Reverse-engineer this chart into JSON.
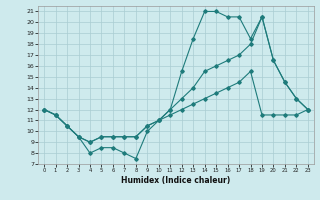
{
  "xlabel": "Humidex (Indice chaleur)",
  "bg_color": "#ceeaed",
  "grid_color": "#aacdd2",
  "line_color": "#1e7b7b",
  "xlim": [
    -0.5,
    23.5
  ],
  "ylim": [
    7,
    21.5
  ],
  "xticks": [
    0,
    1,
    2,
    3,
    4,
    5,
    6,
    7,
    8,
    9,
    10,
    11,
    12,
    13,
    14,
    15,
    16,
    17,
    18,
    19,
    20,
    21,
    22,
    23
  ],
  "yticks": [
    7,
    8,
    9,
    10,
    11,
    12,
    13,
    14,
    15,
    16,
    17,
    18,
    19,
    20,
    21
  ],
  "line1_x": [
    0,
    1,
    2,
    3,
    4,
    5,
    6,
    7,
    8,
    9,
    10,
    11,
    12,
    13,
    14,
    15,
    16,
    17,
    18,
    19,
    20,
    21,
    22,
    23
  ],
  "line1_y": [
    12,
    11.5,
    10.5,
    9.5,
    8.0,
    8.5,
    8.5,
    8.0,
    7.5,
    10.0,
    11.0,
    12.0,
    15.5,
    18.5,
    21.0,
    21.0,
    20.5,
    20.5,
    18.5,
    20.5,
    16.5,
    14.5,
    13.0,
    12.0
  ],
  "line2_x": [
    0,
    1,
    2,
    3,
    4,
    5,
    6,
    7,
    8,
    9,
    10,
    11,
    12,
    13,
    14,
    15,
    16,
    17,
    18,
    19,
    20,
    21,
    22,
    23
  ],
  "line2_y": [
    12,
    11.5,
    10.5,
    9.5,
    9.0,
    9.5,
    9.5,
    9.5,
    9.5,
    10.5,
    11.0,
    12.0,
    13.0,
    14.0,
    15.5,
    16.0,
    16.5,
    17.0,
    18.0,
    20.5,
    16.5,
    14.5,
    13.0,
    12.0
  ],
  "line3_x": [
    0,
    1,
    2,
    3,
    4,
    5,
    6,
    7,
    8,
    9,
    10,
    11,
    12,
    13,
    14,
    15,
    16,
    17,
    18,
    19,
    20,
    21,
    22,
    23
  ],
  "line3_y": [
    12,
    11.5,
    10.5,
    9.5,
    9.0,
    9.5,
    9.5,
    9.5,
    9.5,
    10.5,
    11.0,
    11.5,
    12.0,
    12.5,
    13.0,
    13.5,
    14.0,
    14.5,
    15.5,
    11.5,
    11.5,
    11.5,
    11.5,
    12.0
  ]
}
